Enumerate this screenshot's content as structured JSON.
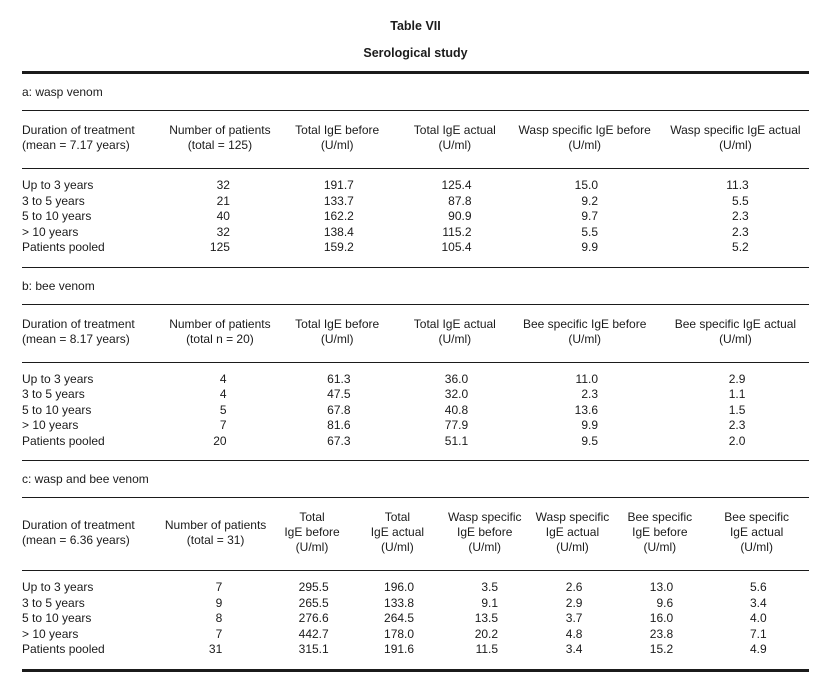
{
  "page": {
    "title": "Table VII",
    "subtitle": "Serological study"
  },
  "colors": {
    "text": "#1b1b1b",
    "rule": "#1b1b1b",
    "background": "#ffffff"
  },
  "sections": [
    {
      "caption": "a: wasp venom",
      "columns": [
        {
          "lines": [
            "Duration of treatment",
            "(mean = 7.17 years)"
          ]
        },
        {
          "lines": [
            "Number of patients",
            "(total = 125)"
          ]
        },
        {
          "lines": [
            "Total IgE before",
            "(U/ml)"
          ]
        },
        {
          "lines": [
            "Total IgE actual",
            "(U/ml)"
          ]
        },
        {
          "lines": [
            "Wasp specific IgE before",
            "(U/ml)"
          ]
        },
        {
          "lines": [
            "Wasp specific IgE actual",
            "(U/ml)"
          ]
        }
      ],
      "rows": [
        [
          "Up to 3 years",
          "32",
          "191.7",
          "125.4",
          "15.0",
          "11.3"
        ],
        [
          "3 to 5 years",
          "21",
          "133.7",
          "87.8",
          "9.2",
          "5.5"
        ],
        [
          "5 to 10 years",
          "40",
          "162.2",
          "90.9",
          "9.7",
          "2.3"
        ],
        [
          "> 10 years",
          "32",
          "138.4",
          "115.2",
          "5.5",
          "2.3"
        ],
        [
          "Patients pooled",
          "125",
          "159.2",
          "105.4",
          "9.9",
          "5.2"
        ]
      ]
    },
    {
      "caption": "b: bee venom",
      "columns": [
        {
          "lines": [
            "Duration of treatment",
            "(mean = 8.17 years)"
          ]
        },
        {
          "lines": [
            "Number of patients",
            "(total n = 20)"
          ]
        },
        {
          "lines": [
            "Total IgE before",
            "(U/ml)"
          ]
        },
        {
          "lines": [
            "Total IgE actual",
            "(U/ml)"
          ]
        },
        {
          "lines": [
            "Bee specific IgE before",
            "(U/ml)"
          ]
        },
        {
          "lines": [
            "Bee specific IgE actual",
            "(U/ml)"
          ]
        }
      ],
      "rows": [
        [
          "Up to 3 years",
          "4",
          "61.3",
          "36.0",
          "11.0",
          "2.9"
        ],
        [
          "3 to 5 years",
          "4",
          "47.5",
          "32.0",
          "2.3",
          "1.1"
        ],
        [
          "5 to 10 years",
          "5",
          "67.8",
          "40.8",
          "13.6",
          "1.5"
        ],
        [
          "> 10 years",
          "7",
          "81.6",
          "77.9",
          "9.9",
          "2.3"
        ],
        [
          "Patients pooled",
          "20",
          "67.3",
          "51.1",
          "9.5",
          "2.0"
        ]
      ]
    },
    {
      "caption": "c: wasp and bee venom",
      "columns": [
        {
          "lines": [
            "Duration of treatment",
            "(mean = 6.36 years)"
          ]
        },
        {
          "lines": [
            "Number of patients",
            "(total = 31)"
          ]
        },
        {
          "lines": [
            "Total",
            "IgE before",
            "(U/ml)"
          ]
        },
        {
          "lines": [
            "Total",
            "IgE actual",
            "(U/ml)"
          ]
        },
        {
          "lines": [
            "Wasp specific",
            "IgE before",
            "(U/ml)"
          ]
        },
        {
          "lines": [
            "Wasp specific",
            "IgE actual",
            "(U/ml)"
          ]
        },
        {
          "lines": [
            "Bee specific",
            "IgE before",
            "(U/ml)"
          ]
        },
        {
          "lines": [
            "Bee specific",
            "IgE actual",
            "(U/ml)"
          ]
        }
      ],
      "rows": [
        [
          "Up to 3 years",
          "7",
          "295.5",
          "196.0",
          "3.5",
          "2.6",
          "13.0",
          "5.6"
        ],
        [
          "3 to 5 years",
          "9",
          "265.5",
          "133.8",
          "9.1",
          "2.9",
          "9.6",
          "3.4"
        ],
        [
          "5 to 10 years",
          "8",
          "276.6",
          "264.5",
          "13.5",
          "3.7",
          "16.0",
          "4.0"
        ],
        [
          "> 10 years",
          "7",
          "442.7",
          "178.0",
          "20.2",
          "4.8",
          "23.8",
          "7.1"
        ],
        [
          "Patients pooled",
          "31",
          "315.1",
          "191.6",
          "11.5",
          "3.4",
          "15.2",
          "4.9"
        ]
      ]
    }
  ]
}
